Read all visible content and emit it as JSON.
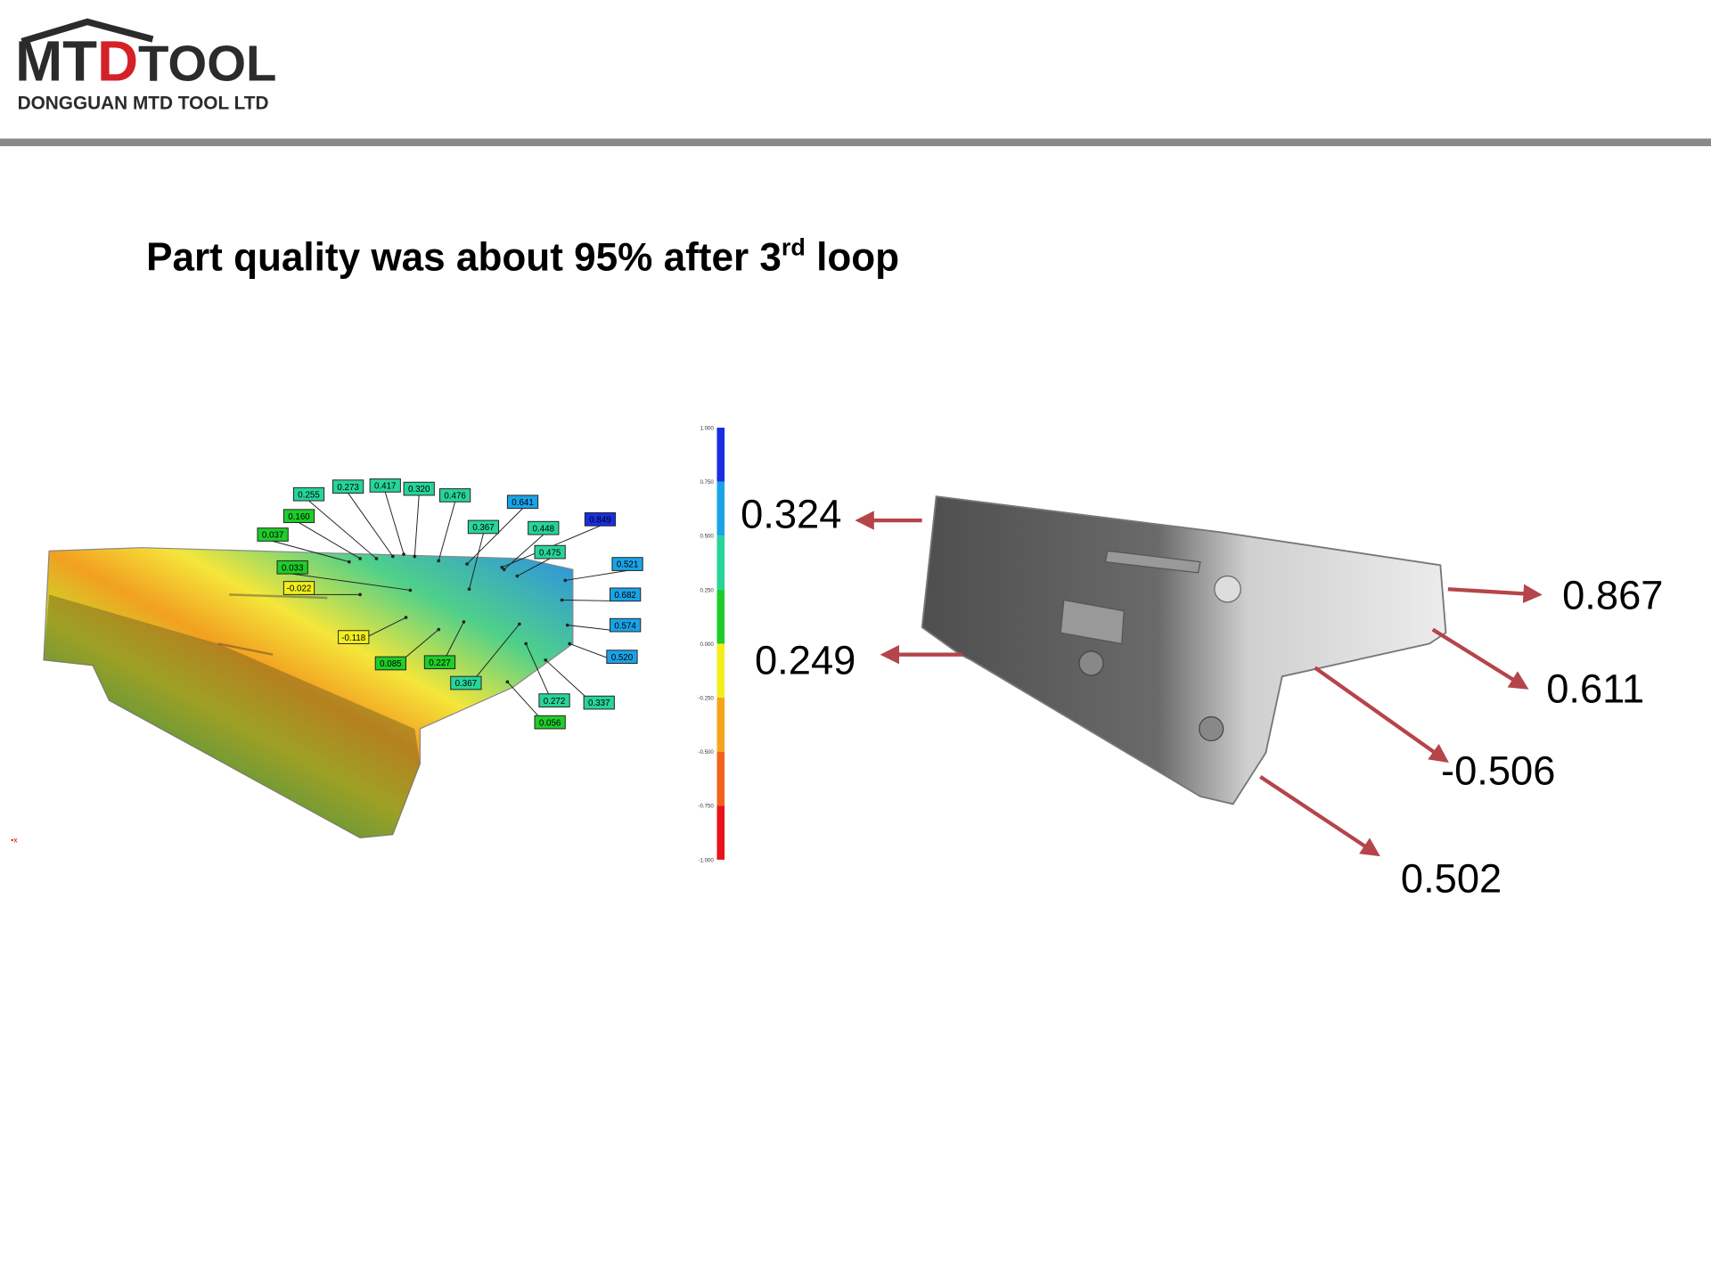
{
  "header": {
    "logo_mark": "MT",
    "logo_accent": "D",
    "logo_word": "TOOL",
    "company": "DONGGUAN MTD TOOL LTD"
  },
  "title": {
    "text": "Part quality was about 95% after 3",
    "superscript": "rd",
    "suffix": " loop"
  },
  "color_scale": {
    "ticks": [
      "1.000",
      "0.750",
      "0.500",
      "0.250",
      "0.000",
      "-0.250",
      "-0.500",
      "-0.750",
      "-1.000"
    ]
  },
  "left_callouts": [
    "0.255",
    "0.273",
    "0.417",
    "0.320",
    "0.476",
    "0.641",
    "0.849",
    "0.160",
    "0.367",
    "0.448",
    "0.037",
    "0.475",
    "0.521",
    "0.033",
    "-0.022",
    "0.682",
    "0.574",
    "-0.118",
    "0.520",
    "0.085",
    "0.227",
    "0.367",
    "0.272",
    "0.337",
    "0.056"
  ],
  "right_callouts": [
    "0.324",
    "0.249",
    "0.867",
    "0.611",
    "-0.506",
    "0.502"
  ]
}
